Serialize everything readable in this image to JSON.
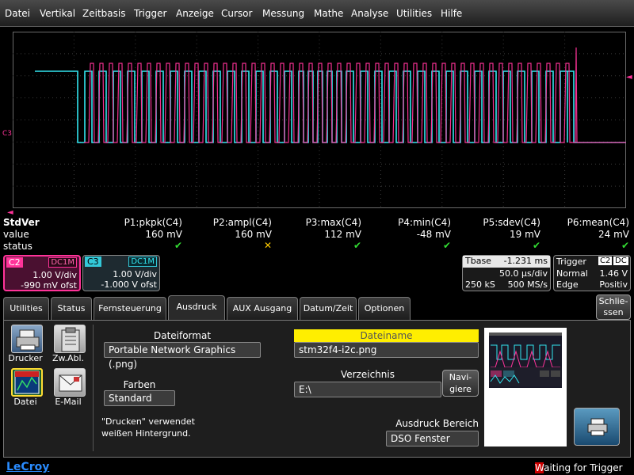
{
  "menu": [
    "Datei",
    "Vertikal",
    "Zeitbasis",
    "Trigger",
    "Anzeige",
    "Cursor",
    "Messung",
    "Mathe",
    "Analyse",
    "Utilities",
    "Hilfe"
  ],
  "waveform": {
    "channel_marker": "C3",
    "colors": {
      "c2": "#ff3399",
      "c3": "#33e6f0"
    }
  },
  "measure": {
    "row_labels": {
      "name": "StdVer",
      "value": "value",
      "status": "status"
    },
    "params": [
      {
        "name": "P1:pkpk(C4)",
        "value": "160 mV",
        "status": "ok"
      },
      {
        "name": "P2:ampl(C4)",
        "value": "160 mV",
        "status": "warn"
      },
      {
        "name": "P3:max(C4)",
        "value": "112 mV",
        "status": "ok"
      },
      {
        "name": "P4:min(C4)",
        "value": "-48 mV",
        "status": "ok"
      },
      {
        "name": "P5:sdev(C4)",
        "value": "19 mV",
        "status": "ok"
      },
      {
        "name": "P6:mean(C4)",
        "value": "24 mV",
        "status": "ok"
      }
    ]
  },
  "channels": {
    "c2": {
      "name": "C2",
      "coupling": "DC1M",
      "vdiv": "1.00 V/div",
      "offset": "-990 mV ofst"
    },
    "c3": {
      "name": "C3",
      "coupling": "DC1M",
      "vdiv": "1.00 V/div",
      "offset": "-1.000 V ofst"
    }
  },
  "timebase": {
    "label": "Tbase",
    "delay": "-1.231 ms",
    "tdiv": "50.0 µs/div",
    "samples": "250 kS",
    "rate": "500 MS/s"
  },
  "trigger": {
    "label": "Trigger",
    "source": "C2",
    "coupling": "DC",
    "mode": "Normal",
    "level": "1.46 V",
    "type": "Edge",
    "slope": "Positiv"
  },
  "tabs": [
    "Utilities",
    "Status",
    "Fernsteuerung",
    "Ausdruck",
    "AUX Ausgang",
    "Datum/Zeit",
    "Optionen"
  ],
  "close": {
    "line1": "Schlie-",
    "line2": "ssen"
  },
  "targets": {
    "printer": "Drucker",
    "clipboard": "Zw.Abl.",
    "file": "Datei",
    "email": "E-Mail"
  },
  "icons": {
    "printer": "printer-icon",
    "clipboard": "clipboard-icon",
    "file": "file-icon",
    "email": "email-icon",
    "print_action": "print-icon"
  },
  "print_settings": {
    "format_label": "Dateiformat",
    "format_value": "Portable Network Graphics (.png)",
    "colors_label": "Farben",
    "colors_value": "Standard",
    "note_line1": "\"Drucken\" verwendet",
    "note_line2": "weißen Hintergrund.",
    "filename_label": "Dateiname",
    "filename_value": "stm32f4-i2c.png",
    "dir_label": "Verzeichnis",
    "dir_value": "E:\\",
    "navigate_line1": "Navi-",
    "navigate_line2": "giere",
    "area_label": "Ausdruck Bereich",
    "area_value": "DSO Fenster"
  },
  "footer": {
    "logo": "LeCroy",
    "status_first": "W",
    "status_rest": "aiting for Trigger"
  }
}
